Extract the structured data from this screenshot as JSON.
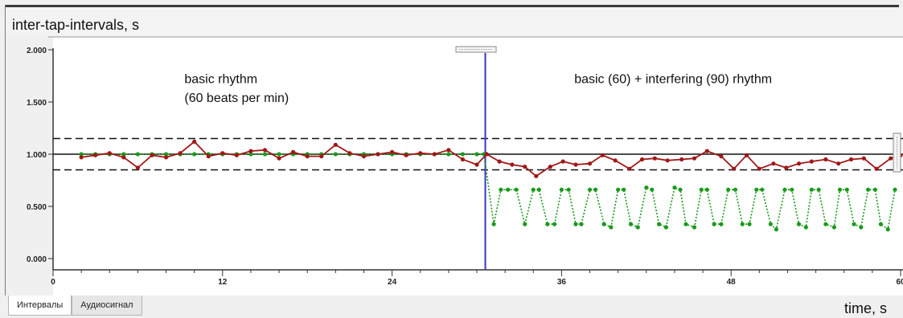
{
  "window": {
    "tabs": [
      {
        "label": "Интервалы",
        "active": true
      },
      {
        "label": "Аудиосигнал",
        "active": false
      }
    ]
  },
  "chart_data": {
    "type": "line",
    "title": "inter-tap-intervals, s",
    "xlabel": "time, s",
    "ylabel": "",
    "xlim": [
      0,
      60
    ],
    "ylim": [
      0,
      2
    ],
    "x_ticks": [
      "0",
      "12",
      "24",
      "36",
      "48",
      "60"
    ],
    "y_ticks": [
      "0.000",
      "0.500",
      "1.000",
      "1.500",
      "2.000"
    ],
    "grid": false,
    "annotations": [
      {
        "text": "basic rhythm",
        "x": 9.3,
        "y": 1.68
      },
      {
        "text": "(60 beats per min)",
        "x": 9.3,
        "y": 1.5
      },
      {
        "text": "basic (60) + interfering (90) rhythm",
        "x": 36.9,
        "y": 1.68
      }
    ],
    "reference_lines": {
      "solid": [
        1.0
      ],
      "dashed": [
        1.15,
        0.85
      ],
      "vertical_marker_x": 30.6
    },
    "colors": {
      "red_series": "#a01818",
      "green_series": "#1a9a1a",
      "marker_line": "#3636c8",
      "reference_line": "#111111"
    },
    "series": [
      {
        "style": "solid",
        "color": "#a01818",
        "points": [
          [
            2.0,
            0.97
          ],
          [
            3.0,
            0.99
          ],
          [
            4.0,
            1.01
          ],
          [
            5.0,
            0.97
          ],
          [
            6.0,
            0.87
          ],
          [
            7.0,
            0.99
          ],
          [
            8.0,
            0.97
          ],
          [
            9.0,
            1.01
          ],
          [
            10.0,
            1.12
          ],
          [
            11.0,
            0.98
          ],
          [
            12.0,
            1.01
          ],
          [
            13.0,
            0.99
          ],
          [
            14.0,
            1.03
          ],
          [
            15.0,
            1.04
          ],
          [
            16.0,
            0.96
          ],
          [
            17.0,
            1.02
          ],
          [
            18.0,
            0.98
          ],
          [
            19.0,
            0.98
          ],
          [
            20.0,
            1.09
          ],
          [
            21.0,
            1.01
          ],
          [
            22.0,
            0.98
          ],
          [
            23.0,
            1.0
          ],
          [
            24.0,
            1.02
          ],
          [
            25.0,
            0.99
          ],
          [
            26.0,
            1.01
          ],
          [
            27.0,
            1.0
          ],
          [
            28.0,
            1.04
          ],
          [
            29.0,
            0.95
          ],
          [
            30.0,
            0.9
          ],
          [
            30.7,
            1.0
          ],
          [
            31.6,
            0.93
          ],
          [
            32.5,
            0.9
          ],
          [
            33.4,
            0.88
          ],
          [
            34.2,
            0.79
          ],
          [
            35.2,
            0.88
          ],
          [
            36.1,
            0.93
          ],
          [
            37.0,
            0.9
          ],
          [
            38.0,
            0.91
          ],
          [
            38.9,
            0.99
          ],
          [
            39.8,
            0.94
          ],
          [
            40.8,
            0.86
          ],
          [
            41.7,
            0.95
          ],
          [
            42.6,
            0.96
          ],
          [
            43.5,
            0.94
          ],
          [
            44.5,
            0.95
          ],
          [
            45.4,
            0.96
          ],
          [
            46.3,
            1.03
          ],
          [
            47.3,
            0.98
          ],
          [
            48.2,
            0.86
          ],
          [
            49.1,
            0.99
          ],
          [
            50.0,
            0.86
          ],
          [
            51.0,
            0.91
          ],
          [
            51.9,
            0.87
          ],
          [
            52.8,
            0.91
          ],
          [
            53.7,
            0.93
          ],
          [
            54.7,
            0.95
          ],
          [
            55.6,
            0.91
          ],
          [
            56.5,
            0.95
          ],
          [
            57.4,
            0.96
          ],
          [
            58.3,
            0.86
          ],
          [
            59.3,
            0.96
          ],
          [
            60.0,
            0.99
          ]
        ]
      },
      {
        "style": "dotted",
        "color": "#1a9a1a",
        "points": [
          [
            2.0,
            1.0
          ],
          [
            3.0,
            1.0
          ],
          [
            4.0,
            1.0
          ],
          [
            5.0,
            1.0
          ],
          [
            6.0,
            1.0
          ],
          [
            7.0,
            1.0
          ],
          [
            8.0,
            1.0
          ],
          [
            9.0,
            1.0
          ],
          [
            10.0,
            1.0
          ],
          [
            11.0,
            1.0
          ],
          [
            12.0,
            1.0
          ],
          [
            13.0,
            1.0
          ],
          [
            14.0,
            1.0
          ],
          [
            15.0,
            1.0
          ],
          [
            16.0,
            1.0
          ],
          [
            17.0,
            1.0
          ],
          [
            18.0,
            1.0
          ],
          [
            19.0,
            1.0
          ],
          [
            20.0,
            1.0
          ],
          [
            21.0,
            1.0
          ],
          [
            22.0,
            1.0
          ],
          [
            23.0,
            1.0
          ],
          [
            24.0,
            1.0
          ],
          [
            25.0,
            1.0
          ],
          [
            26.0,
            1.0
          ],
          [
            27.0,
            1.0
          ],
          [
            28.0,
            1.0
          ],
          [
            29.0,
            1.0
          ],
          [
            30.0,
            1.0
          ],
          [
            30.5,
            1.0
          ],
          [
            31.2,
            0.33
          ],
          [
            31.7,
            0.66
          ],
          [
            32.2,
            0.66
          ],
          [
            32.8,
            0.66
          ],
          [
            33.4,
            0.33
          ],
          [
            34.0,
            0.66
          ],
          [
            34.4,
            0.66
          ],
          [
            35.0,
            0.33
          ],
          [
            35.5,
            0.33
          ],
          [
            36.0,
            0.66
          ],
          [
            36.5,
            0.66
          ],
          [
            37.0,
            0.33
          ],
          [
            37.4,
            0.33
          ],
          [
            38.0,
            0.66
          ],
          [
            38.4,
            0.66
          ],
          [
            39.0,
            0.33
          ],
          [
            39.5,
            0.3
          ],
          [
            40.0,
            0.66
          ],
          [
            40.4,
            0.66
          ],
          [
            40.9,
            0.33
          ],
          [
            41.4,
            0.3
          ],
          [
            42.0,
            0.68
          ],
          [
            42.4,
            0.66
          ],
          [
            42.9,
            0.33
          ],
          [
            43.4,
            0.3
          ],
          [
            44.0,
            0.68
          ],
          [
            44.4,
            0.66
          ],
          [
            44.8,
            0.33
          ],
          [
            45.4,
            0.3
          ],
          [
            45.9,
            0.66
          ],
          [
            46.3,
            0.66
          ],
          [
            46.8,
            0.33
          ],
          [
            47.3,
            0.33
          ],
          [
            47.8,
            0.66
          ],
          [
            48.3,
            0.66
          ],
          [
            48.8,
            0.33
          ],
          [
            49.3,
            0.33
          ],
          [
            49.8,
            0.66
          ],
          [
            50.2,
            0.66
          ],
          [
            50.8,
            0.33
          ],
          [
            51.2,
            0.28
          ],
          [
            51.8,
            0.66
          ],
          [
            52.3,
            0.66
          ],
          [
            52.8,
            0.33
          ],
          [
            53.3,
            0.3
          ],
          [
            53.7,
            0.66
          ],
          [
            54.2,
            0.66
          ],
          [
            54.7,
            0.33
          ],
          [
            55.3,
            0.3
          ],
          [
            55.7,
            0.66
          ],
          [
            56.2,
            0.66
          ],
          [
            56.7,
            0.33
          ],
          [
            57.2,
            0.3
          ],
          [
            57.7,
            0.66
          ],
          [
            58.2,
            0.66
          ],
          [
            58.6,
            0.33
          ],
          [
            59.1,
            0.28
          ],
          [
            59.6,
            0.66
          ]
        ]
      }
    ]
  }
}
